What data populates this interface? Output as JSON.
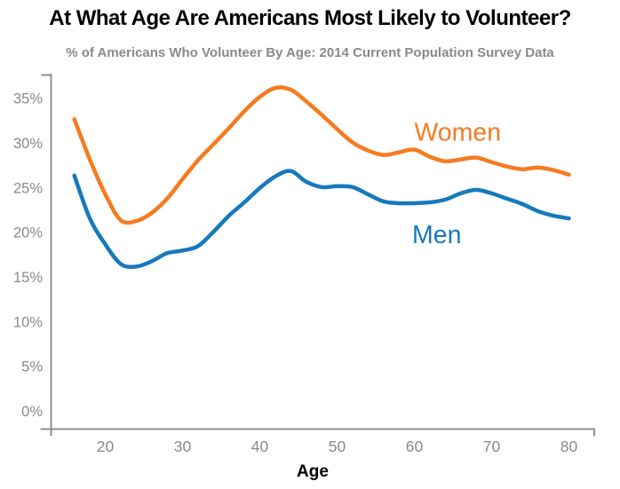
{
  "header": {
    "title": "At What Age Are Americans Most Likely to Volunteer?",
    "subtitle": "% of Americans Who Volunteer By Age: 2014 Current Population Survey Data"
  },
  "chart_data": {
    "type": "line",
    "x": [
      16,
      18,
      20,
      22,
      24,
      26,
      28,
      30,
      32,
      34,
      36,
      38,
      40,
      42,
      44,
      46,
      48,
      50,
      52,
      54,
      56,
      58,
      60,
      62,
      64,
      66,
      68,
      70,
      72,
      74,
      76,
      78,
      80
    ],
    "series": [
      {
        "name": "Women",
        "color": "#f57b20",
        "values": [
          32.7,
          28.2,
          24.3,
          21.4,
          21.3,
          22.2,
          23.8,
          26.0,
          28.1,
          29.9,
          31.7,
          33.6,
          35.2,
          36.2,
          36.0,
          34.7,
          33.2,
          31.6,
          30.1,
          29.2,
          28.7,
          29.0,
          29.3,
          28.5,
          28.0,
          28.2,
          28.4,
          27.9,
          27.4,
          27.1,
          27.3,
          27.0,
          26.5
        ]
      },
      {
        "name": "Men",
        "color": "#1679bd",
        "values": [
          26.4,
          21.6,
          18.7,
          16.5,
          16.2,
          16.8,
          17.7,
          18.0,
          18.5,
          20.1,
          21.9,
          23.4,
          25.0,
          26.3,
          26.9,
          25.7,
          25.1,
          25.2,
          25.1,
          24.3,
          23.5,
          23.3,
          23.3,
          23.4,
          23.7,
          24.4,
          24.8,
          24.4,
          23.8,
          23.2,
          22.4,
          21.9,
          21.6
        ]
      }
    ],
    "annotations": [
      {
        "text": "Women",
        "series": "Women",
        "color": "#f57b20",
        "age": 65.6,
        "pct": 31.3
      },
      {
        "text": "Men",
        "series": "Men",
        "color": "#1679bd",
        "age": 62.9,
        "pct": 19.8
      }
    ],
    "title": "At What Age Are Americans Most Likely to Volunteer?",
    "subtitle": "% of Americans Who Volunteer By Age: 2014 Current Population Survey Data",
    "xlabel": "Age",
    "ylabel": "",
    "x_ticks": [
      20,
      30,
      40,
      50,
      60,
      70,
      80
    ],
    "y_ticks": [
      0,
      5,
      10,
      15,
      20,
      25,
      30,
      35
    ],
    "y_tick_suffix": "%",
    "xlim": [
      13,
      83
    ],
    "ylim": [
      0,
      35
    ],
    "grid": false,
    "legend_position": "inline-labels"
  },
  "colors": {
    "title_text": "#000000",
    "subtitle_text": "#8a8a8a",
    "axis_line": "#909090",
    "tick_label": "#8a8a8e",
    "axis_title": "#000000",
    "women_line": "#f57b20",
    "men_line": "#1679bd"
  }
}
